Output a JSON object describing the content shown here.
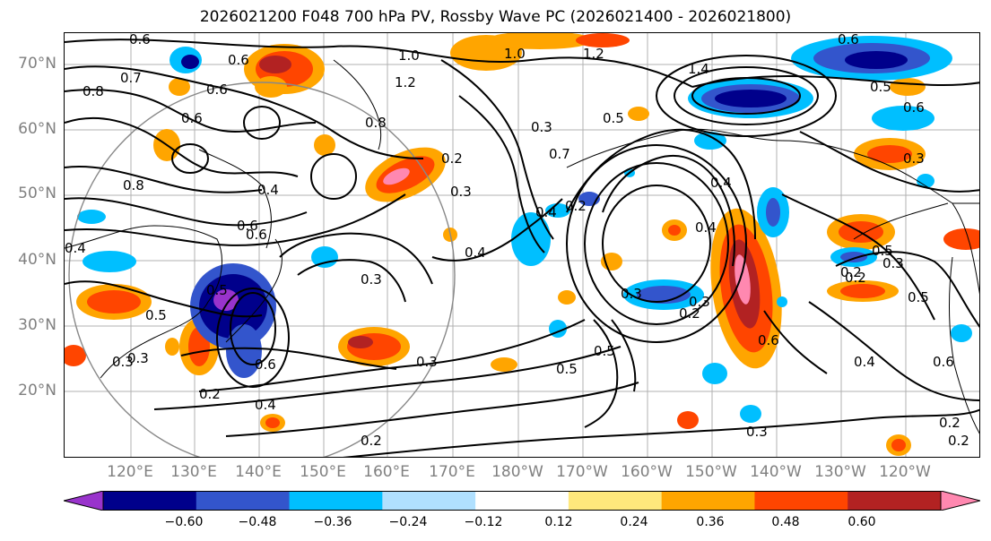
{
  "title": "2026021200 F048 700 hPa PV, Rossby Wave PC (2026021400 - 2026021800)",
  "lat_labels": [
    "70°N",
    "60°N",
    "50°N",
    "40°N",
    "30°N",
    "20°N"
  ],
  "lon_labels": [
    "120°E",
    "130°E",
    "140°E",
    "150°E",
    "160°E",
    "170°E",
    "180°W",
    "170°W",
    "160°W",
    "150°W",
    "140°W",
    "130°W",
    "120°W"
  ],
  "colorbar": {
    "colors": [
      "#9933cc",
      "#00008b",
      "#3355cc",
      "#00bfff",
      "#b0e0ff",
      "#ffffff",
      "#ffe87c",
      "#ffa500",
      "#ff4500",
      "#b22222",
      "#ff88b0"
    ],
    "tick_labels": [
      "−0.60",
      "−0.48",
      "−0.36",
      "−0.24",
      "−0.12",
      "0.12",
      "0.24",
      "0.36",
      "0.48",
      "0.60"
    ]
  },
  "contour_labels": [
    "0.6",
    "0.7",
    "0.8",
    "0.6",
    "1.0",
    "1.0",
    "1.2",
    "1.2",
    "1.4",
    "0.6",
    "0.6",
    "0.5",
    "0.6",
    "0.8",
    "0.8",
    "0.6",
    "0.3",
    "0.2",
    "0.4",
    "0.7",
    "0.3",
    "0.4",
    "0.3",
    "0.6",
    "0.5",
    "0.2",
    "0.3",
    "0.5",
    "0.3",
    "0.6",
    "0.4",
    "0.5",
    "0.2",
    "0.3",
    "0.4",
    "0.4",
    "0.2",
    "0.3",
    "0.5",
    "0.3",
    "0.2",
    "0.2",
    "0.5",
    "0.6",
    "0.2",
    "0.3",
    "0.4",
    "0.6",
    "0.5",
    "0.2",
    "0.6",
    "0.4",
    "0.5",
    "0.4",
    "0.3",
    "0.3",
    "0.2"
  ]
}
